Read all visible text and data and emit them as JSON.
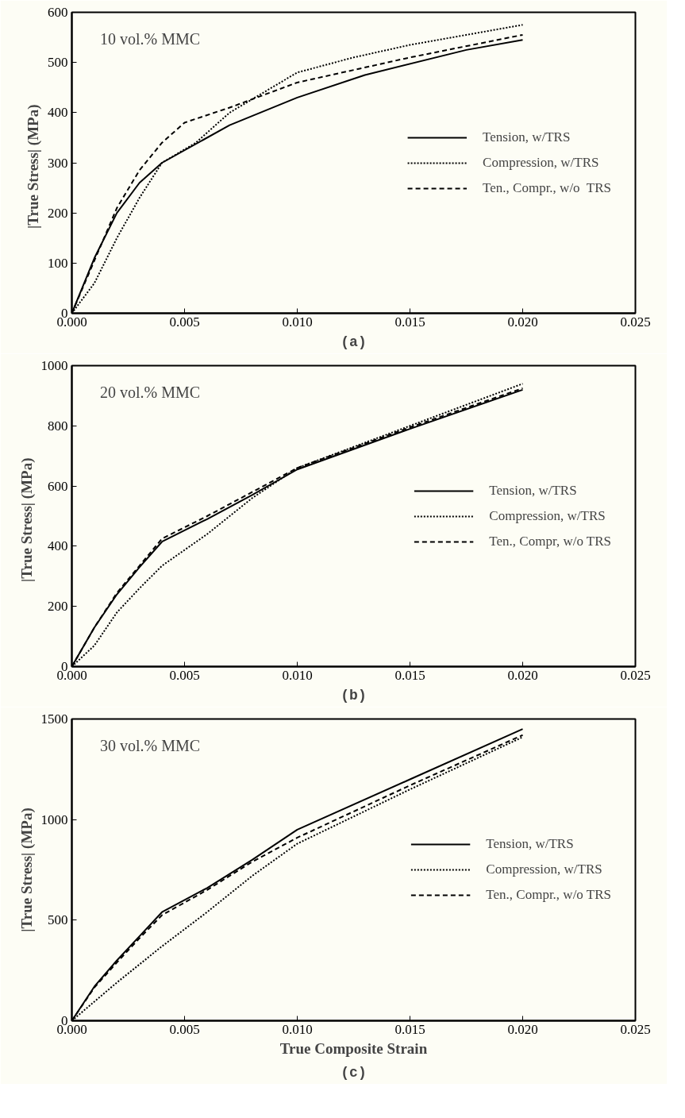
{
  "chart_data": [
    {
      "type": "line",
      "title": "(a)",
      "ylabel": "|True Stress|   (MPa)",
      "annotations": [
        "10 vol.% MMC"
      ],
      "xlim": [
        0,
        0.025
      ],
      "ylim": [
        0,
        600
      ],
      "xticks": [
        {
          "value": 0,
          "label": "0.000"
        },
        {
          "value": 0.005,
          "label": "0.005"
        },
        {
          "value": 0.01,
          "label": "0.010"
        },
        {
          "value": 0.015,
          "label": "0.015"
        },
        {
          "value": 0.02,
          "label": "0.020"
        },
        {
          "value": 0.025,
          "label": "0.025"
        }
      ],
      "yticks": [
        0,
        100,
        200,
        300,
        400,
        500,
        600
      ],
      "grid": false,
      "legend": "right",
      "marker": "none",
      "series": [
        {
          "name": "Tension, w/TRS",
          "color": "#000000",
          "line_style": "solid",
          "x": [
            0,
            0.001,
            0.002,
            0.003,
            0.004,
            0.007,
            0.01,
            0.013,
            0.0175,
            0.02
          ],
          "values": [
            0,
            110,
            200,
            260,
            300,
            375,
            430,
            475,
            525,
            545
          ]
        },
        {
          "name": "Compression, w/TRS",
          "color": "#000000",
          "line_style": "dotted",
          "x": [
            0,
            0.001,
            0.002,
            0.003,
            0.004,
            0.0055,
            0.007,
            0.01,
            0.0125,
            0.015,
            0.02
          ],
          "values": [
            0,
            60,
            150,
            230,
            300,
            340,
            400,
            480,
            510,
            535,
            575
          ]
        },
        {
          "name": "Ten., Compr., w/o  TRS",
          "color": "#000000",
          "line_style": "dashed",
          "x": [
            0,
            0.001,
            0.002,
            0.003,
            0.004,
            0.005,
            0.007,
            0.01,
            0.015,
            0.02
          ],
          "values": [
            0,
            105,
            210,
            285,
            340,
            380,
            410,
            460,
            510,
            555
          ]
        }
      ]
    },
    {
      "type": "line",
      "title": "(b)",
      "ylabel": "|True Stress|   (MPa)",
      "annotations": [
        "20 vol.% MMC"
      ],
      "xlim": [
        0,
        0.025
      ],
      "ylim": [
        0,
        1000
      ],
      "xticks": [
        {
          "value": 0,
          "label": "0.000"
        },
        {
          "value": 0.005,
          "label": "0.005"
        },
        {
          "value": 0.01,
          "label": "0.010"
        },
        {
          "value": 0.015,
          "label": "0.015"
        },
        {
          "value": 0.02,
          "label": "0.020"
        },
        {
          "value": 0.025,
          "label": "0.025"
        }
      ],
      "yticks": [
        0,
        200,
        400,
        600,
        800,
        1000
      ],
      "grid": false,
      "legend": "right",
      "marker": "none",
      "series": [
        {
          "name": "Tension, w/TRS",
          "color": "#000000",
          "line_style": "solid",
          "x": [
            0,
            0.001,
            0.002,
            0.003,
            0.004,
            0.006,
            0.008,
            0.01,
            0.015,
            0.02
          ],
          "values": [
            0,
            130,
            240,
            330,
            415,
            490,
            570,
            655,
            790,
            920
          ]
        },
        {
          "name": "Compression, w/TRS",
          "color": "#000000",
          "line_style": "dotted",
          "x": [
            0,
            0.001,
            0.002,
            0.003,
            0.004,
            0.006,
            0.008,
            0.01,
            0.015,
            0.02
          ],
          "values": [
            0,
            70,
            180,
            260,
            335,
            440,
            560,
            660,
            800,
            940
          ]
        },
        {
          "name": "Ten., Compr, w/o TRS",
          "color": "#000000",
          "line_style": "dashed",
          "x": [
            0,
            0.001,
            0.002,
            0.003,
            0.004,
            0.006,
            0.008,
            0.01,
            0.015,
            0.02
          ],
          "values": [
            0,
            130,
            245,
            335,
            425,
            500,
            580,
            660,
            795,
            925
          ]
        }
      ]
    },
    {
      "type": "line",
      "title": "(c)",
      "xlabel": "True Composite Strain",
      "ylabel": "|True Stress| (MPa)",
      "annotations": [
        "30 vol.% MMC"
      ],
      "xlim": [
        0,
        0.025
      ],
      "ylim": [
        0,
        1500
      ],
      "xticks": [
        {
          "value": 0,
          "label": "0.000"
        },
        {
          "value": 0.005,
          "label": "0.005"
        },
        {
          "value": 0.01,
          "label": "0.010"
        },
        {
          "value": 0.015,
          "label": "0.015"
        },
        {
          "value": 0.02,
          "label": "0.020"
        },
        {
          "value": 0.025,
          "label": "0.025"
        }
      ],
      "yticks": [
        0,
        500,
        1000,
        1500
      ],
      "grid": false,
      "legend": "right",
      "marker": "none",
      "series": [
        {
          "name": "Tension, w/TRS",
          "color": "#000000",
          "line_style": "solid",
          "x": [
            0,
            0.001,
            0.002,
            0.003,
            0.004,
            0.006,
            0.008,
            0.01,
            0.015,
            0.02
          ],
          "values": [
            0,
            170,
            300,
            420,
            540,
            660,
            800,
            950,
            1200,
            1450
          ]
        },
        {
          "name": "Compression, w/TRS",
          "color": "#000000",
          "line_style": "dotted",
          "x": [
            0,
            0.002,
            0.004,
            0.006,
            0.008,
            0.01,
            0.015,
            0.02
          ],
          "values": [
            0,
            190,
            370,
            540,
            720,
            880,
            1150,
            1410
          ]
        },
        {
          "name": "Ten., Compr., w/o TRS",
          "color": "#000000",
          "line_style": "dashed",
          "x": [
            0,
            0.001,
            0.002,
            0.003,
            0.004,
            0.006,
            0.008,
            0.01,
            0.015,
            0.02
          ],
          "values": [
            0,
            165,
            290,
            410,
            525,
            650,
            790,
            910,
            1170,
            1420
          ]
        }
      ]
    }
  ]
}
